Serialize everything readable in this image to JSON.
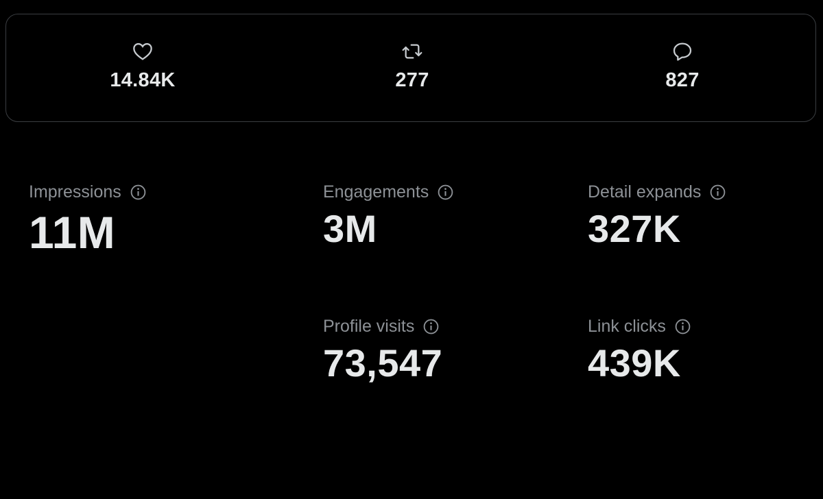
{
  "engagement_bar": {
    "items": [
      {
        "icon": "like",
        "value": "14.84K"
      },
      {
        "icon": "repost",
        "value": "277"
      },
      {
        "icon": "reply",
        "value": "827"
      }
    ]
  },
  "metrics": [
    {
      "label": "Impressions",
      "value": "11M"
    },
    {
      "label": "Engagements",
      "value": "3M"
    },
    {
      "label": "Detail expands",
      "value": "327K"
    },
    {
      "label": "Profile visits",
      "value": "73,547"
    },
    {
      "label": "Link clicks",
      "value": "439K"
    }
  ]
}
